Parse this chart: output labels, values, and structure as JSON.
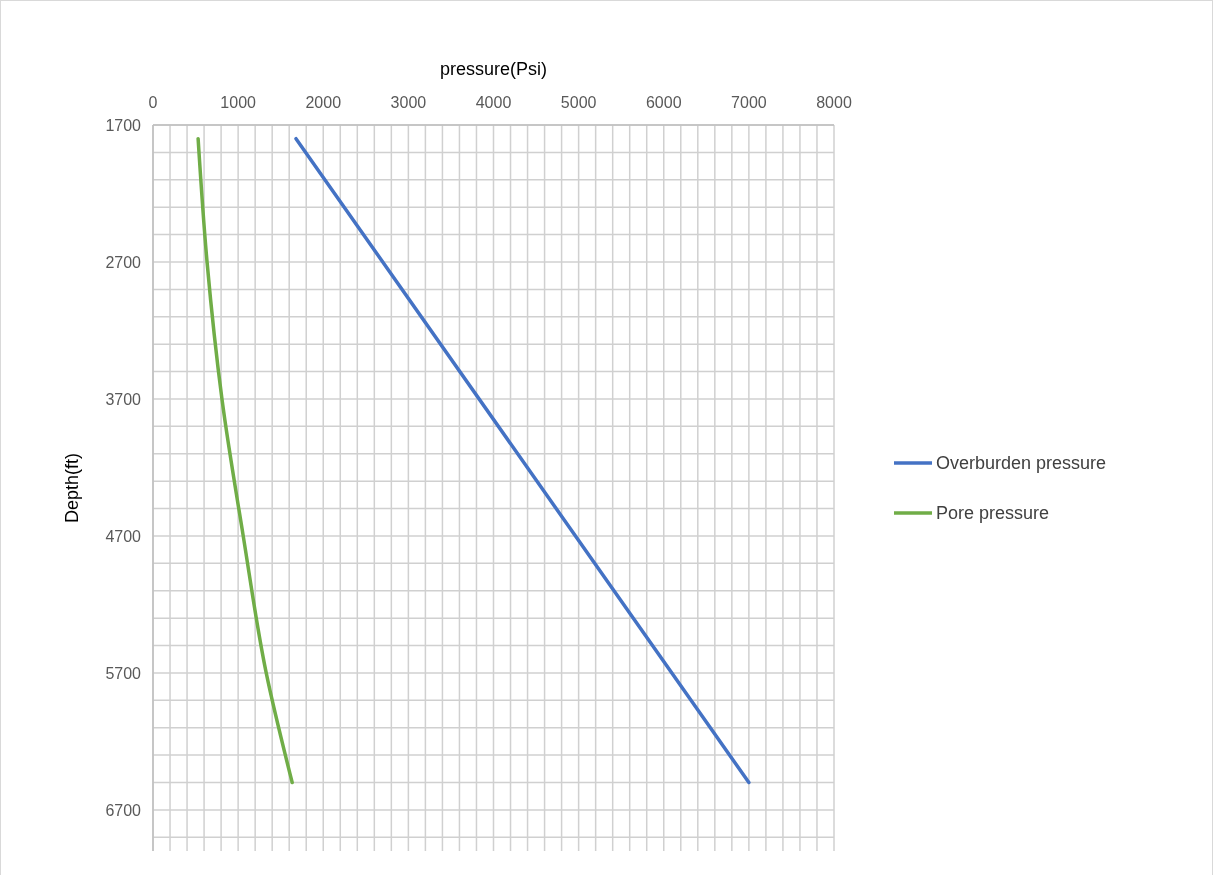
{
  "chart_data": {
    "type": "line",
    "xlabel": "pressure(Psi)",
    "ylabel": "Depth(ft)",
    "xlim": [
      0,
      8000
    ],
    "xticks": [
      0,
      1000,
      2000,
      3000,
      4000,
      5000,
      6000,
      7000,
      8000
    ],
    "ylim": [
      7000,
      1700
    ],
    "yticks": [
      1700,
      2700,
      3700,
      4700,
      5700,
      6700
    ],
    "grid": true,
    "legend": "right",
    "series": [
      {
        "name": "Overburden pressure",
        "color": "#4472c4",
        "x": [
          1680,
          7000
        ],
        "values": [
          1800,
          6500
        ]
      },
      {
        "name": "Pore pressure",
        "color": "#70ad47",
        "x": [
          530,
          635,
          810,
          1060,
          1330,
          1635
        ],
        "values": [
          1800,
          2700,
          3700,
          4700,
          5700,
          6500
        ]
      }
    ]
  }
}
